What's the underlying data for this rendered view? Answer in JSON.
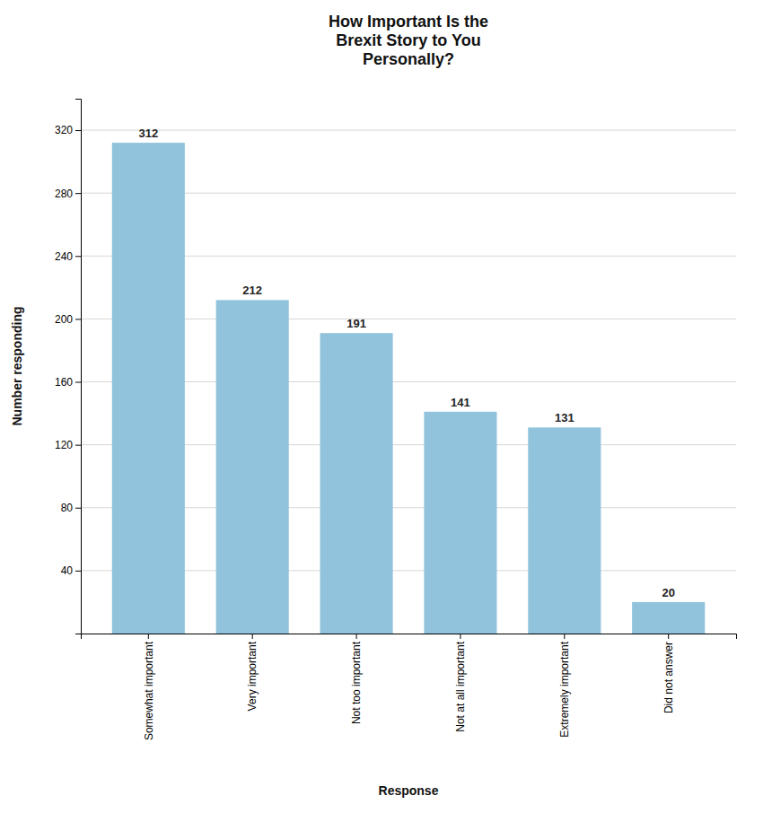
{
  "chart_data": {
    "type": "bar",
    "title": "How Important Is the\nBrexit Story to You\nPersonally?",
    "categories": [
      "Somewhat important",
      "Very important",
      "Not too important",
      "Not at all important",
      "Extremely important",
      "Did not answer"
    ],
    "values": [
      312,
      212,
      191,
      141,
      131,
      20
    ],
    "color": "#91C4DC",
    "xlabel": "Response",
    "ylabel": "Number responding",
    "ylim": [
      0,
      340
    ],
    "yticks": [
      40,
      80,
      120,
      160,
      200,
      240,
      280,
      320
    ],
    "grid": true,
    "data_labels": true
  }
}
